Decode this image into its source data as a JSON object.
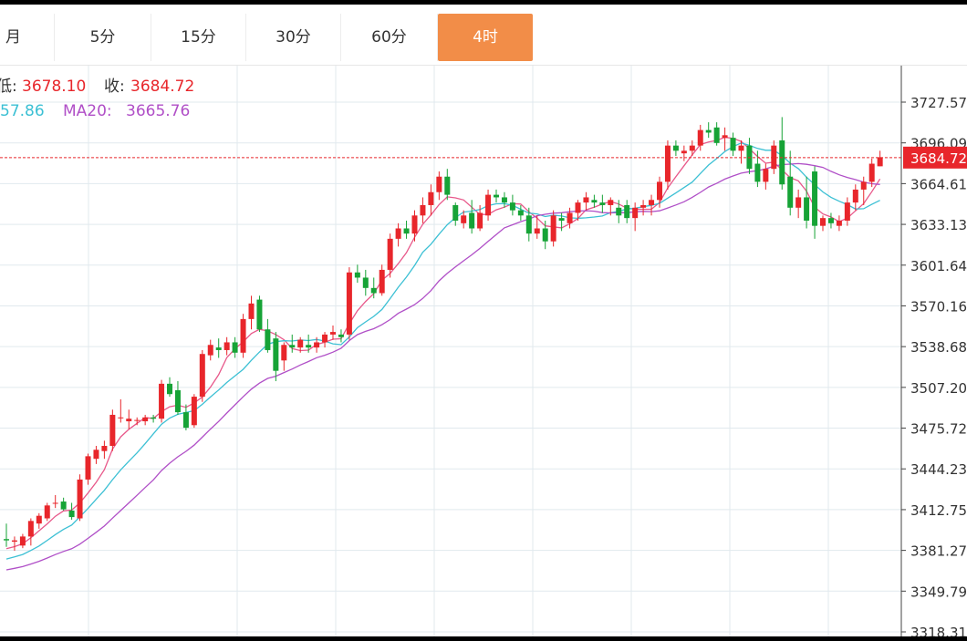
{
  "tabs": [
    {
      "label": "月",
      "active": false
    },
    {
      "label": "5分",
      "active": false
    },
    {
      "label": "15分",
      "active": false
    },
    {
      "label": "30分",
      "active": false
    },
    {
      "label": "60分",
      "active": false
    },
    {
      "label": "4时",
      "active": true
    }
  ],
  "info": {
    "low_label": "低:",
    "low_value": "3678.10",
    "close_label": "收:",
    "close_value": "3684.72",
    "ma10_value": "57.86",
    "ma20_label": "MA20:",
    "ma20_value": "3665.76"
  },
  "colors": {
    "up": "#e8262b",
    "down": "#16a336",
    "ma10": "#3cc0d4",
    "ma20": "#b04fc7",
    "ma5": "#e8588a",
    "active_tab": "#f28d48",
    "grid": "#e1e9ee"
  },
  "chart_data": {
    "type": "candlestick",
    "y_axis_ticks": [
      "3727.57",
      "3696.09",
      "3664.61",
      "3633.13",
      "3601.64",
      "3570.16",
      "3538.68",
      "3507.20",
      "3475.72",
      "3444.23",
      "3412.75",
      "3381.27",
      "3349.79",
      "3318.31"
    ],
    "ylim": [
      3318.31,
      3727.57
    ],
    "last_price": "3684.72",
    "candles": [
      [
        3390,
        3402,
        3384,
        3389
      ],
      [
        3388,
        3392,
        3381,
        3389
      ],
      [
        3385,
        3394,
        3383,
        3392
      ],
      [
        3392,
        3406,
        3385,
        3404
      ],
      [
        3402,
        3410,
        3398,
        3408
      ],
      [
        3406,
        3418,
        3404,
        3416
      ],
      [
        3418,
        3424,
        3414,
        3418
      ],
      [
        3419,
        3422,
        3412,
        3413
      ],
      [
        3412,
        3418,
        3405,
        3407
      ],
      [
        3406,
        3440,
        3404,
        3436
      ],
      [
        3436,
        3456,
        3432,
        3454
      ],
      [
        3452,
        3462,
        3448,
        3459
      ],
      [
        3458,
        3466,
        3452,
        3462
      ],
      [
        3462,
        3490,
        3458,
        3486
      ],
      [
        3484,
        3498,
        3480,
        3484
      ],
      [
        3481,
        3490,
        3475,
        3483
      ],
      [
        3482,
        3484,
        3478,
        3482
      ],
      [
        3481,
        3486,
        3478,
        3484
      ],
      [
        3484,
        3486,
        3480,
        3483
      ],
      [
        3483,
        3513,
        3480,
        3510
      ],
      [
        3510,
        3515,
        3500,
        3502
      ],
      [
        3505,
        3512,
        3486,
        3488
      ],
      [
        3488,
        3494,
        3474,
        3476
      ],
      [
        3478,
        3502,
        3476,
        3500
      ],
      [
        3500,
        3536,
        3496,
        3533
      ],
      [
        3532,
        3544,
        3528,
        3540
      ],
      [
        3538,
        3545,
        3530,
        3536
      ],
      [
        3536,
        3546,
        3532,
        3542
      ],
      [
        3542,
        3546,
        3530,
        3534
      ],
      [
        3534,
        3564,
        3530,
        3560
      ],
      [
        3560,
        3578,
        3552,
        3572
      ],
      [
        3575,
        3578,
        3550,
        3552
      ],
      [
        3552,
        3560,
        3534,
        3536
      ],
      [
        3545,
        3550,
        3512,
        3520
      ],
      [
        3528,
        3542,
        3520,
        3540
      ],
      [
        3540,
        3548,
        3534,
        3538
      ],
      [
        3538,
        3546,
        3534,
        3544
      ],
      [
        3540,
        3548,
        3534,
        3538
      ],
      [
        3538,
        3546,
        3534,
        3542
      ],
      [
        3542,
        3550,
        3538,
        3548
      ],
      [
        3548,
        3555,
        3544,
        3550
      ],
      [
        3548,
        3552,
        3542,
        3546
      ],
      [
        3548,
        3600,
        3544,
        3596
      ],
      [
        3596,
        3602,
        3588,
        3592
      ],
      [
        3592,
        3598,
        3578,
        3584
      ],
      [
        3584,
        3592,
        3576,
        3580
      ],
      [
        3580,
        3602,
        3578,
        3598
      ],
      [
        3598,
        3626,
        3592,
        3622
      ],
      [
        3622,
        3634,
        3616,
        3630
      ],
      [
        3630,
        3636,
        3622,
        3626
      ],
      [
        3626,
        3644,
        3620,
        3640
      ],
      [
        3640,
        3654,
        3634,
        3648
      ],
      [
        3648,
        3664,
        3640,
        3658
      ],
      [
        3658,
        3674,
        3652,
        3670
      ],
      [
        3670,
        3676,
        3652,
        3656
      ],
      [
        3648,
        3650,
        3632,
        3636
      ],
      [
        3634,
        3644,
        3630,
        3640
      ],
      [
        3642,
        3652,
        3626,
        3630
      ],
      [
        3630,
        3648,
        3628,
        3642
      ],
      [
        3640,
        3660,
        3636,
        3656
      ],
      [
        3656,
        3660,
        3650,
        3654
      ],
      [
        3654,
        3658,
        3646,
        3650
      ],
      [
        3650,
        3656,
        3640,
        3644
      ],
      [
        3644,
        3648,
        3636,
        3640
      ],
      [
        3640,
        3646,
        3620,
        3626
      ],
      [
        3626,
        3640,
        3622,
        3630
      ],
      [
        3630,
        3636,
        3614,
        3620
      ],
      [
        3620,
        3644,
        3616,
        3640
      ],
      [
        3638,
        3642,
        3628,
        3636
      ],
      [
        3634,
        3646,
        3630,
        3642
      ],
      [
        3642,
        3652,
        3636,
        3650
      ],
      [
        3650,
        3658,
        3644,
        3654
      ],
      [
        3652,
        3656,
        3646,
        3650
      ],
      [
        3650,
        3656,
        3642,
        3648
      ],
      [
        3648,
        3654,
        3640,
        3652
      ],
      [
        3646,
        3652,
        3634,
        3640
      ],
      [
        3648,
        3652,
        3634,
        3638
      ],
      [
        3638,
        3650,
        3628,
        3646
      ],
      [
        3646,
        3652,
        3640,
        3648
      ],
      [
        3648,
        3656,
        3640,
        3652
      ],
      [
        3652,
        3670,
        3646,
        3666
      ],
      [
        3666,
        3698,
        3660,
        3694
      ],
      [
        3694,
        3698,
        3686,
        3690
      ],
      [
        3688,
        3694,
        3682,
        3690
      ],
      [
        3690,
        3698,
        3686,
        3694
      ],
      [
        3694,
        3710,
        3690,
        3706
      ],
      [
        3706,
        3712,
        3700,
        3704
      ],
      [
        3708,
        3712,
        3694,
        3696
      ],
      [
        3700,
        3708,
        3690,
        3702
      ],
      [
        3700,
        3704,
        3686,
        3690
      ],
      [
        3690,
        3698,
        3680,
        3694
      ],
      [
        3694,
        3700,
        3672,
        3676
      ],
      [
        3680,
        3690,
        3662,
        3666
      ],
      [
        3666,
        3680,
        3660,
        3676
      ],
      [
        3676,
        3698,
        3672,
        3694
      ],
      [
        3698,
        3716,
        3660,
        3664
      ],
      [
        3670,
        3690,
        3640,
        3646
      ],
      [
        3646,
        3660,
        3638,
        3654
      ],
      [
        3654,
        3670,
        3630,
        3636
      ],
      [
        3674,
        3678,
        3622,
        3632
      ],
      [
        3632,
        3640,
        3628,
        3638
      ],
      [
        3638,
        3642,
        3630,
        3634
      ],
      [
        3632,
        3640,
        3628,
        3636
      ],
      [
        3636,
        3654,
        3632,
        3650
      ],
      [
        3650,
        3664,
        3644,
        3660
      ],
      [
        3660,
        3670,
        3648,
        3666
      ],
      [
        3666,
        3684,
        3662,
        3680
      ],
      [
        3678,
        3690,
        3678,
        3685
      ]
    ]
  }
}
